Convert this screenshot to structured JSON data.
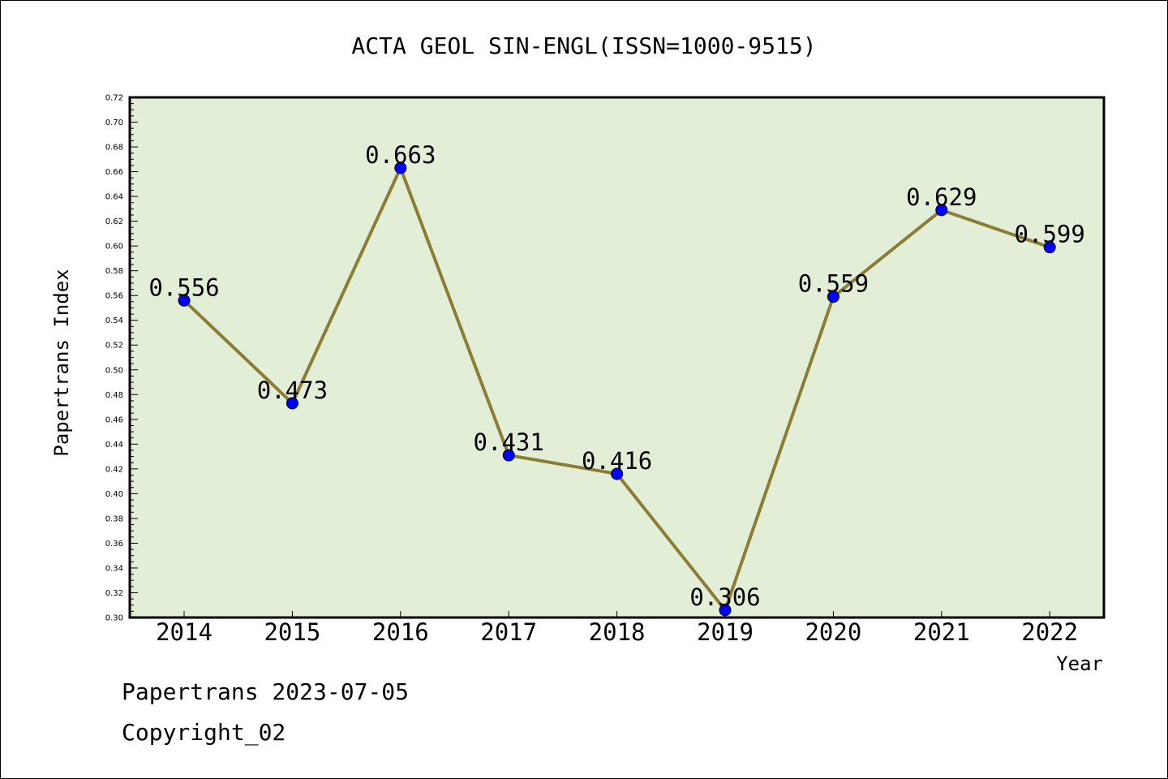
{
  "chart_data": {
    "type": "line",
    "title": "ACTA GEOL SIN-ENGL(ISSN=1000-9515)",
    "xlabel": "Year",
    "ylabel": "Papertrans Index",
    "categories": [
      "2014",
      "2015",
      "2016",
      "2017",
      "2018",
      "2019",
      "2020",
      "2021",
      "2022"
    ],
    "values": [
      0.556,
      0.473,
      0.663,
      0.431,
      0.416,
      0.306,
      0.559,
      0.629,
      0.599
    ],
    "data_labels": [
      "0.556",
      "0.473",
      "0.663",
      "0.431",
      "0.416",
      "0.306",
      "0.559",
      "0.629",
      "0.599"
    ],
    "ylim": [
      0.3,
      0.72
    ],
    "y_ticks": [
      "0.30",
      "0.32",
      "0.34",
      "0.36",
      "0.38",
      "0.40",
      "0.42",
      "0.44",
      "0.46",
      "0.48",
      "0.50",
      "0.52",
      "0.54",
      "0.56",
      "0.58",
      "0.60",
      "0.62",
      "0.64",
      "0.66",
      "0.68",
      "0.70",
      "0.72"
    ],
    "grid": false,
    "colors": {
      "plot_background": "#e2efd6",
      "line": "#8b7d35",
      "marker": "#0000ff",
      "axis": "#000000"
    }
  },
  "footer": {
    "date_line": "Papertrans 2023-07-05",
    "copyright": "Copyright_02"
  }
}
